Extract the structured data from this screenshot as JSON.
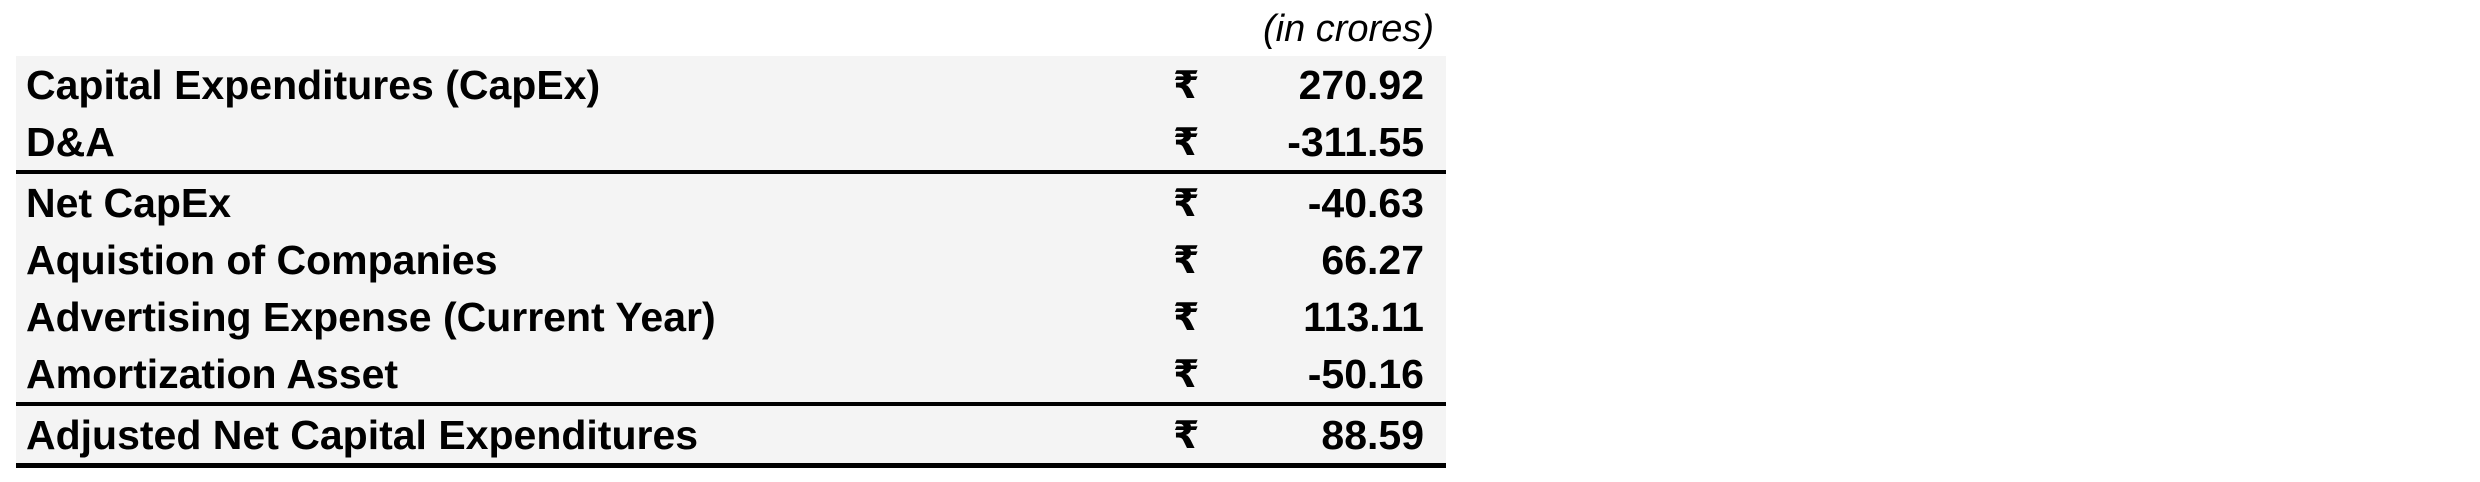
{
  "unit_note": "(in crores)",
  "rows": [
    {
      "label": "Capital Expenditures (CapEx)",
      "currency": "₹",
      "value": "270.92"
    },
    {
      "label": "D&A",
      "currency": "₹",
      "value": "-311.55"
    },
    {
      "label": "Net CapEx",
      "currency": "₹",
      "value": "-40.63"
    },
    {
      "label": "Aquistion of Companies",
      "currency": "₹",
      "value": "66.27"
    },
    {
      "label": "Advertising Expense (Current Year)",
      "currency": "₹",
      "value": "113.11"
    },
    {
      "label": "Amortization Asset",
      "currency": "₹",
      "value": "-50.16"
    },
    {
      "label": "Adjusted Net Capital Expenditures",
      "currency": "₹",
      "value": "88.59"
    }
  ]
}
